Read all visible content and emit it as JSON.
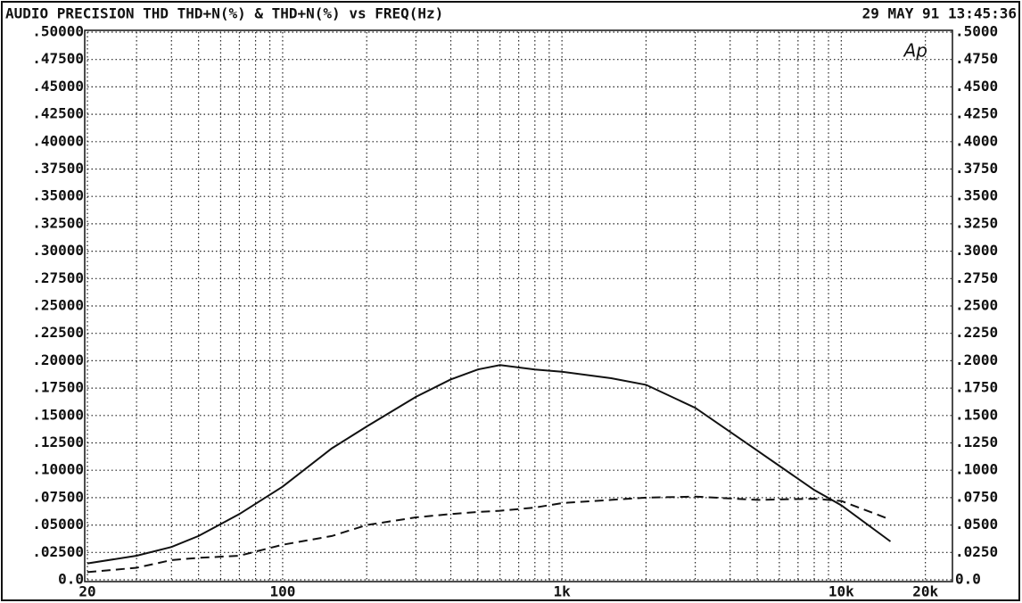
{
  "chart_data": {
    "type": "line",
    "title": "AUDIO PRECISION THD THD+N(%) & THD+N(%) vs FREQ(Hz)",
    "timestamp": "29 MAY 91 13:45:36",
    "logo": "Ap",
    "log_x": true,
    "grid": true,
    "x": [
      20,
      30,
      40,
      50,
      70,
      100,
      150,
      200,
      300,
      400,
      500,
      600,
      800,
      1000,
      1500,
      2000,
      3000,
      5000,
      8000,
      10000,
      15000
    ],
    "series": [
      {
        "color": "#111111",
        "dash": false,
        "values": [
          0.015,
          0.022,
          0.03,
          0.04,
          0.06,
          0.085,
          0.12,
          0.14,
          0.167,
          0.183,
          0.192,
          0.196,
          0.192,
          0.19,
          0.184,
          0.178,
          0.157,
          0.118,
          0.082,
          0.068,
          0.035
        ]
      },
      {
        "color": "#111111",
        "dash": true,
        "values": [
          0.007,
          0.011,
          0.018,
          0.02,
          0.022,
          0.032,
          0.04,
          0.05,
          0.057,
          0.06,
          0.062,
          0.063,
          0.066,
          0.07,
          0.073,
          0.075,
          0.076,
          0.073,
          0.074,
          0.072,
          0.055
        ]
      }
    ],
    "xlim": [
      20,
      25000
    ],
    "xticks": [
      20,
      100,
      {
        "value": 1000,
        "label": "1k"
      },
      {
        "value": 10000,
        "label": "10k"
      },
      {
        "value": 20000,
        "label": "20k"
      }
    ],
    "xgrid": [
      20,
      30,
      40,
      50,
      60,
      70,
      80,
      90,
      100,
      200,
      300,
      400,
      500,
      600,
      700,
      800,
      900,
      1000,
      2000,
      3000,
      4000,
      5000,
      6000,
      7000,
      8000,
      9000,
      10000,
      20000
    ],
    "ylim": [
      0,
      0.5
    ],
    "yticks": [
      {
        "value": 0.5,
        "label": ".50000"
      },
      {
        "value": 0.475,
        "label": ".47500"
      },
      {
        "value": 0.45,
        "label": ".45000"
      },
      {
        "value": 0.425,
        "label": ".42500"
      },
      {
        "value": 0.4,
        "label": ".40000"
      },
      {
        "value": 0.375,
        "label": ".37500"
      },
      {
        "value": 0.35,
        "label": ".35000"
      },
      {
        "value": 0.325,
        "label": ".32500"
      },
      {
        "value": 0.3,
        "label": ".30000"
      },
      {
        "value": 0.275,
        "label": ".27500"
      },
      {
        "value": 0.25,
        "label": ".25000"
      },
      {
        "value": 0.225,
        "label": ".22500"
      },
      {
        "value": 0.2,
        "label": ".20000"
      },
      {
        "value": 0.175,
        "label": ".17500"
      },
      {
        "value": 0.15,
        "label": ".15000"
      },
      {
        "value": 0.125,
        "label": ".12500"
      },
      {
        "value": 0.1,
        "label": ".10000"
      },
      {
        "value": 0.075,
        "label": ".07500"
      },
      {
        "value": 0.05,
        "label": ".05000"
      },
      {
        "value": 0.025,
        "label": ".02500"
      },
      {
        "value": 0,
        "label": "0.0"
      }
    ],
    "y2lim": [
      0,
      0.5
    ],
    "y2ticks": [
      {
        "value": 0.5,
        "label": ".5000"
      },
      {
        "value": 0.475,
        "label": ".4750"
      },
      {
        "value": 0.45,
        "label": ".4500"
      },
      {
        "value": 0.425,
        "label": ".4250"
      },
      {
        "value": 0.4,
        "label": ".4000"
      },
      {
        "value": 0.375,
        "label": ".3750"
      },
      {
        "value": 0.35,
        "label": ".3500"
      },
      {
        "value": 0.325,
        "label": ".3250"
      },
      {
        "value": 0.3,
        "label": ".3000"
      },
      {
        "value": 0.275,
        "label": ".2750"
      },
      {
        "value": 0.25,
        "label": ".2500"
      },
      {
        "value": 0.225,
        "label": ".2250"
      },
      {
        "value": 0.2,
        "label": ".2000"
      },
      {
        "value": 0.175,
        "label": ".1750"
      },
      {
        "value": 0.15,
        "label": ".1500"
      },
      {
        "value": 0.125,
        "label": ".1250"
      },
      {
        "value": 0.1,
        "label": ".1000"
      },
      {
        "value": 0.075,
        "label": ".0750"
      },
      {
        "value": 0.05,
        "label": ".0500"
      },
      {
        "value": 0.025,
        "label": ".0250"
      },
      {
        "value": 0,
        "label": "0.0"
      }
    ]
  }
}
